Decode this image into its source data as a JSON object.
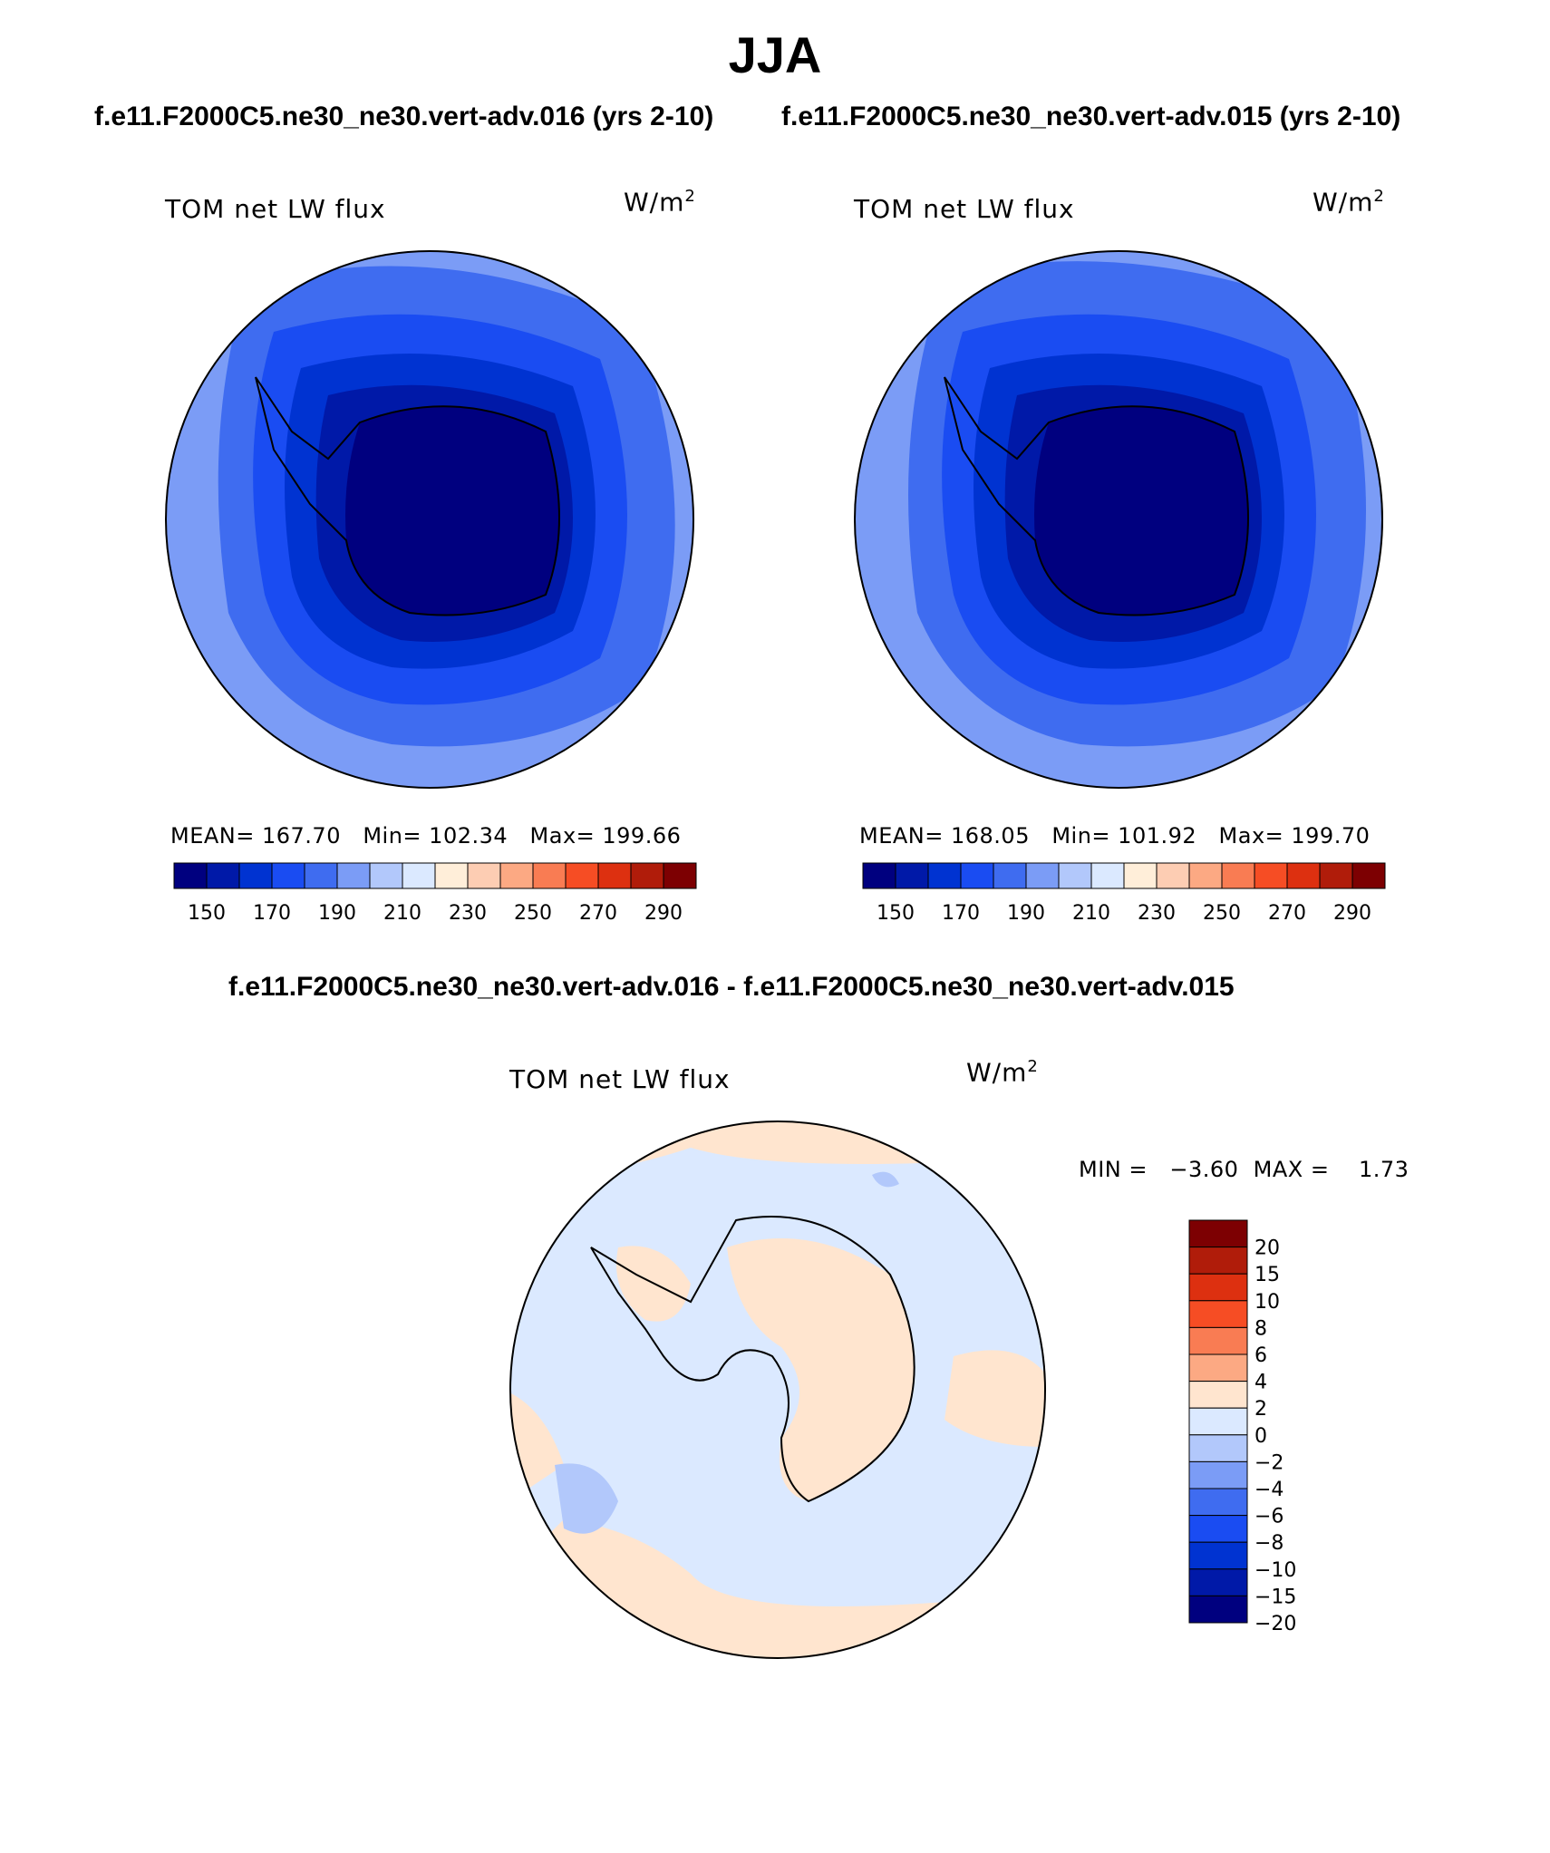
{
  "title": "JJA",
  "case_header": {
    "left": "f.e11.F2000C5.ne30_ne30.vert-adv.016 (yrs 2-10)",
    "right": "f.e11.F2000C5.ne30_ne30.vert-adv.015 (yrs 2-10)"
  },
  "diff_header": "f.e11.F2000C5.ne30_ne30.vert-adv.016 - f.e11.F2000C5.ne30_ne30.vert-adv.015",
  "variable_label": "TOM net LW flux",
  "units": {
    "base": "W/m",
    "exp": "2"
  },
  "panels": [
    {
      "stats": "MEAN= 167.70   Min= 102.34   Max= 199.66"
    },
    {
      "stats": "MEAN= 168.05   Min= 101.92   Max= 199.70"
    }
  ],
  "diff_stats": "MIN =   −3.60  MAX =    1.73",
  "abs_colorbar": {
    "colors": [
      "#00007f",
      "#0019a8",
      "#0033d1",
      "#1a4cf2",
      "#3f6cf0",
      "#7b9cf6",
      "#b2c8fb",
      "#dbe9ff",
      "#ffeed9",
      "#fdcdb3",
      "#fca983",
      "#f97c53",
      "#f64d24",
      "#dd3010",
      "#b01c0a",
      "#7d0002"
    ],
    "labels": [
      "150",
      "170",
      "190",
      "210",
      "230",
      "250",
      "270",
      "290"
    ]
  },
  "diff_colorbar": {
    "colors": [
      "#7d0002",
      "#b01c0a",
      "#dd3010",
      "#f64d24",
      "#f97c53",
      "#fca983",
      "#ffe5cf",
      "#dbe9ff",
      "#b2c8fb",
      "#7b9cf6",
      "#3f6cf0",
      "#1a4cf2",
      "#0033d1",
      "#0019a8",
      "#00007f"
    ],
    "labels": [
      "20",
      "15",
      "10",
      "8",
      "6",
      "4",
      "2",
      "0",
      "−2",
      "−4",
      "−6",
      "−8",
      "−10",
      "−15",
      "−20"
    ]
  }
}
